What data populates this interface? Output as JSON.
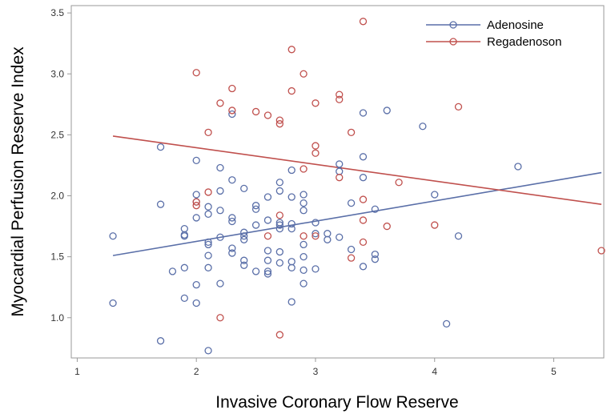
{
  "chart_data": {
    "type": "scatter",
    "title": "",
    "xlabel": "Invasive Coronary Flow Reserve",
    "ylabel": "Myocardial Perfusion Reserve Index",
    "xlim": [
      0.95,
      5.42
    ],
    "ylim": [
      0.67,
      3.56
    ],
    "xticks": [
      1,
      2,
      3,
      4,
      5
    ],
    "yticks": [
      1.0,
      1.5,
      2.0,
      2.5,
      3.0,
      3.5
    ],
    "xtick_labels": [
      "1",
      "2",
      "3",
      "4",
      "5"
    ],
    "ytick_labels": [
      "1.0",
      "1.5",
      "2.0",
      "2.5",
      "3.0",
      "3.5"
    ],
    "grid": false,
    "legend_position": "top-right",
    "series": [
      {
        "name": "Adenosine",
        "color": "#5a6fa8",
        "marker": "open-circle",
        "fit_line": {
          "x": [
            1.3,
            5.4
          ],
          "y": [
            1.51,
            2.19
          ]
        },
        "points": [
          [
            1.3,
            1.67
          ],
          [
            1.3,
            1.12
          ],
          [
            1.7,
            2.4
          ],
          [
            1.7,
            1.93
          ],
          [
            1.7,
            0.81
          ],
          [
            1.8,
            1.38
          ],
          [
            1.9,
            1.73
          ],
          [
            1.9,
            1.68
          ],
          [
            1.9,
            1.67
          ],
          [
            1.9,
            1.41
          ],
          [
            1.9,
            1.16
          ],
          [
            2.0,
            2.29
          ],
          [
            2.0,
            2.01
          ],
          [
            2.0,
            1.95
          ],
          [
            2.0,
            1.82
          ],
          [
            2.0,
            1.27
          ],
          [
            2.0,
            1.12
          ],
          [
            2.1,
            1.91
          ],
          [
            2.1,
            1.85
          ],
          [
            2.1,
            1.62
          ],
          [
            2.1,
            1.6
          ],
          [
            2.1,
            1.51
          ],
          [
            2.1,
            1.41
          ],
          [
            2.1,
            0.73
          ],
          [
            2.2,
            2.23
          ],
          [
            2.2,
            2.04
          ],
          [
            2.2,
            1.88
          ],
          [
            2.2,
            1.66
          ],
          [
            2.2,
            1.28
          ],
          [
            2.3,
            2.67
          ],
          [
            2.3,
            2.13
          ],
          [
            2.3,
            1.82
          ],
          [
            2.3,
            1.79
          ],
          [
            2.3,
            1.57
          ],
          [
            2.3,
            1.53
          ],
          [
            2.4,
            2.06
          ],
          [
            2.4,
            1.7
          ],
          [
            2.4,
            1.67
          ],
          [
            2.4,
            1.64
          ],
          [
            2.4,
            1.47
          ],
          [
            2.4,
            1.43
          ],
          [
            2.5,
            1.92
          ],
          [
            2.5,
            1.89
          ],
          [
            2.5,
            1.76
          ],
          [
            2.5,
            1.38
          ],
          [
            2.6,
            1.99
          ],
          [
            2.6,
            1.8
          ],
          [
            2.6,
            1.55
          ],
          [
            2.6,
            1.47
          ],
          [
            2.6,
            1.38
          ],
          [
            2.6,
            1.36
          ],
          [
            2.7,
            2.11
          ],
          [
            2.7,
            2.04
          ],
          [
            2.7,
            1.78
          ],
          [
            2.7,
            1.76
          ],
          [
            2.7,
            1.73
          ],
          [
            2.7,
            1.54
          ],
          [
            2.7,
            1.45
          ],
          [
            2.8,
            2.21
          ],
          [
            2.8,
            1.99
          ],
          [
            2.8,
            1.77
          ],
          [
            2.8,
            1.73
          ],
          [
            2.8,
            1.46
          ],
          [
            2.8,
            1.41
          ],
          [
            2.8,
            1.13
          ],
          [
            2.9,
            2.01
          ],
          [
            2.9,
            1.94
          ],
          [
            2.9,
            1.88
          ],
          [
            2.9,
            1.6
          ],
          [
            2.9,
            1.5
          ],
          [
            2.9,
            1.39
          ],
          [
            2.9,
            1.28
          ],
          [
            3.0,
            1.78
          ],
          [
            3.0,
            1.69
          ],
          [
            3.0,
            1.4
          ],
          [
            3.1,
            1.69
          ],
          [
            3.1,
            1.64
          ],
          [
            3.2,
            2.26
          ],
          [
            3.2,
            2.2
          ],
          [
            3.2,
            1.66
          ],
          [
            3.3,
            1.94
          ],
          [
            3.3,
            1.56
          ],
          [
            3.4,
            2.68
          ],
          [
            3.4,
            2.32
          ],
          [
            3.4,
            2.15
          ],
          [
            3.4,
            1.42
          ],
          [
            3.5,
            1.89
          ],
          [
            3.5,
            1.52
          ],
          [
            3.5,
            1.48
          ],
          [
            3.6,
            2.7
          ],
          [
            3.9,
            2.57
          ],
          [
            4.0,
            2.01
          ],
          [
            4.1,
            0.95
          ],
          [
            4.2,
            1.67
          ],
          [
            4.7,
            2.24
          ]
        ]
      },
      {
        "name": "Regadenoson",
        "color": "#c0504d",
        "marker": "open-circle",
        "fit_line": {
          "x": [
            1.3,
            5.4
          ],
          "y": [
            2.49,
            1.93
          ]
        },
        "points": [
          [
            2.0,
            3.01
          ],
          [
            2.0,
            1.95
          ],
          [
            2.0,
            1.92
          ],
          [
            2.1,
            2.52
          ],
          [
            2.1,
            2.03
          ],
          [
            2.2,
            2.76
          ],
          [
            2.2,
            1.0
          ],
          [
            2.3,
            2.88
          ],
          [
            2.3,
            2.7
          ],
          [
            2.5,
            2.69
          ],
          [
            2.6,
            2.66
          ],
          [
            2.6,
            1.67
          ],
          [
            2.7,
            2.62
          ],
          [
            2.7,
            2.59
          ],
          [
            2.7,
            1.84
          ],
          [
            2.7,
            0.86
          ],
          [
            2.8,
            3.2
          ],
          [
            2.8,
            2.86
          ],
          [
            2.9,
            3.0
          ],
          [
            2.9,
            2.22
          ],
          [
            2.9,
            1.67
          ],
          [
            3.0,
            2.76
          ],
          [
            3.0,
            2.41
          ],
          [
            3.0,
            2.35
          ],
          [
            3.0,
            1.67
          ],
          [
            3.2,
            2.83
          ],
          [
            3.2,
            2.79
          ],
          [
            3.2,
            2.15
          ],
          [
            3.3,
            2.52
          ],
          [
            3.3,
            1.49
          ],
          [
            3.4,
            3.43
          ],
          [
            3.4,
            1.97
          ],
          [
            3.4,
            1.8
          ],
          [
            3.4,
            1.62
          ],
          [
            3.6,
            1.75
          ],
          [
            3.7,
            2.11
          ],
          [
            4.0,
            1.76
          ],
          [
            4.2,
            2.73
          ],
          [
            5.4,
            1.55
          ]
        ]
      }
    ]
  }
}
